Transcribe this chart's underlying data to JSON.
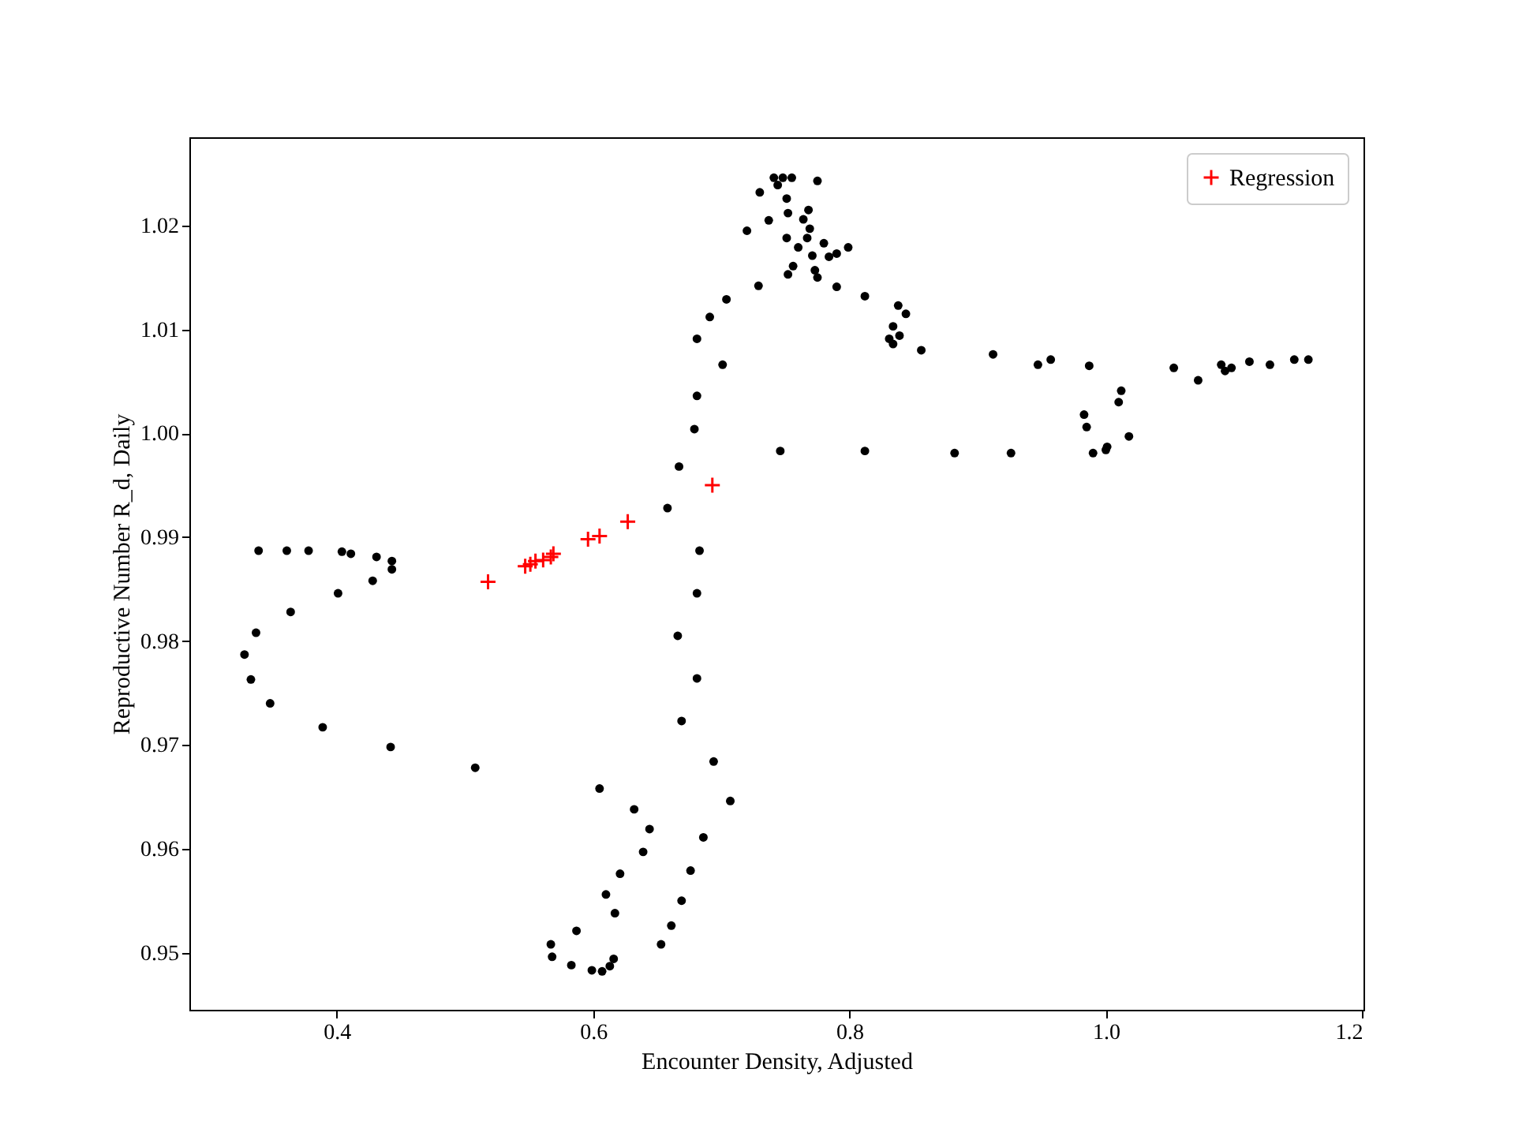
{
  "chart_data": {
    "type": "scatter",
    "xlabel": "Encounter Density, Adjusted",
    "ylabel": "Reproductive Number R_d, Daily",
    "xlim": [
      0.285,
      1.201
    ],
    "ylim": [
      0.9445,
      1.0285
    ],
    "xticks": [
      {
        "value": 0.4,
        "label": "0.4"
      },
      {
        "value": 0.6,
        "label": "0.6"
      },
      {
        "value": 0.8,
        "label": "0.8"
      },
      {
        "value": 1.0,
        "label": "1.0"
      },
      {
        "value": 1.2,
        "label": "1.2"
      }
    ],
    "yticks": [
      {
        "value": 0.95,
        "label": "0.95"
      },
      {
        "value": 0.96,
        "label": "0.96"
      },
      {
        "value": 0.97,
        "label": "0.97"
      },
      {
        "value": 0.98,
        "label": "0.98"
      },
      {
        "value": 0.99,
        "label": "0.99"
      },
      {
        "value": 1.0,
        "label": "1.00"
      },
      {
        "value": 1.01,
        "label": "1.01"
      },
      {
        "value": 1.02,
        "label": "1.02"
      }
    ],
    "grid": false,
    "legend": "top right",
    "series": [
      {
        "marker": "circle",
        "color": "#000000",
        "x": [
          0.339,
          0.361,
          0.378,
          0.404,
          0.411,
          0.431,
          0.443,
          0.443,
          0.428,
          0.401,
          0.364,
          0.337,
          0.328,
          0.333,
          0.348,
          0.389,
          0.442,
          0.508,
          0.605,
          0.632,
          0.644,
          0.639,
          0.621,
          0.61,
          0.617,
          0.587,
          0.567,
          0.568,
          0.583,
          0.599,
          0.607,
          0.613,
          0.616,
          0.653,
          0.661,
          0.669,
          0.676,
          0.686,
          0.707,
          0.694,
          0.669,
          0.681,
          0.666,
          0.681,
          0.683,
          0.658,
          0.667,
          0.679,
          0.681,
          0.701,
          0.681,
          0.691,
          0.704,
          0.729,
          0.72,
          0.737,
          0.73,
          0.741,
          0.744,
          0.748,
          0.755,
          0.775,
          0.751,
          0.752,
          0.768,
          0.764,
          0.769,
          0.751,
          0.767,
          0.76,
          0.78,
          0.799,
          0.79,
          0.784,
          0.771,
          0.756,
          0.773,
          0.752,
          0.775,
          0.79,
          0.812,
          0.838,
          0.844,
          0.839,
          0.834,
          0.831,
          0.834,
          0.856,
          0.746,
          0.812,
          0.882,
          0.926,
          0.912,
          0.947,
          0.957,
          0.987,
          1.053,
          1.072,
          1.09,
          1.093,
          1.098,
          1.112,
          1.128,
          1.147,
          1.158,
          1.012,
          1.01,
          0.983,
          0.985,
          1.018,
          0.99,
          1.0,
          1.001
        ],
        "values": [
          0.9887,
          0.9887,
          0.9887,
          0.9886,
          0.9884,
          0.9881,
          0.9877,
          0.9869,
          0.9858,
          0.9846,
          0.9828,
          0.9808,
          0.9787,
          0.9763,
          0.974,
          0.9717,
          0.9698,
          0.9678,
          0.9658,
          0.9638,
          0.9619,
          0.9597,
          0.9576,
          0.9556,
          0.9538,
          0.9521,
          0.9508,
          0.9496,
          0.9488,
          0.9483,
          0.9482,
          0.9487,
          0.9494,
          0.9508,
          0.9526,
          0.955,
          0.9579,
          0.9611,
          0.9646,
          0.9684,
          0.9723,
          0.9764,
          0.9805,
          0.9846,
          0.9887,
          0.9928,
          0.9968,
          1.0004,
          1.0036,
          1.0066,
          1.0091,
          1.0112,
          1.0129,
          1.0142,
          1.0195,
          1.0205,
          1.0232,
          1.0246,
          1.0239,
          1.0246,
          1.0246,
          1.0243,
          1.0226,
          1.0212,
          1.0215,
          1.0206,
          1.0197,
          1.0188,
          1.0188,
          1.0179,
          1.0183,
          1.0179,
          1.0173,
          1.017,
          1.0171,
          1.0161,
          1.0157,
          1.0153,
          1.015,
          1.0141,
          1.0132,
          1.0123,
          1.0115,
          1.0094,
          1.0103,
          1.0091,
          1.0086,
          1.008,
          0.9983,
          0.9983,
          0.9981,
          0.9981,
          1.0076,
          1.0066,
          1.0071,
          1.0065,
          1.0063,
          1.0051,
          1.0066,
          1.006,
          1.0063,
          1.0069,
          1.0066,
          1.0071,
          1.0071,
          1.0041,
          1.003,
          1.0018,
          1.0006,
          0.9997,
          0.9981,
          0.9984,
          0.9987
        ]
      },
      {
        "marker": "cross",
        "name": "Regression",
        "color": "#ff0000",
        "x": [
          0.518,
          0.547,
          0.551,
          0.555,
          0.561,
          0.567,
          0.569,
          0.596,
          0.605,
          0.627,
          0.693
        ],
        "values": [
          0.9857,
          0.9872,
          0.9874,
          0.9877,
          0.9878,
          0.9881,
          0.9884,
          0.9898,
          0.9901,
          0.9915,
          0.995
        ]
      }
    ]
  }
}
